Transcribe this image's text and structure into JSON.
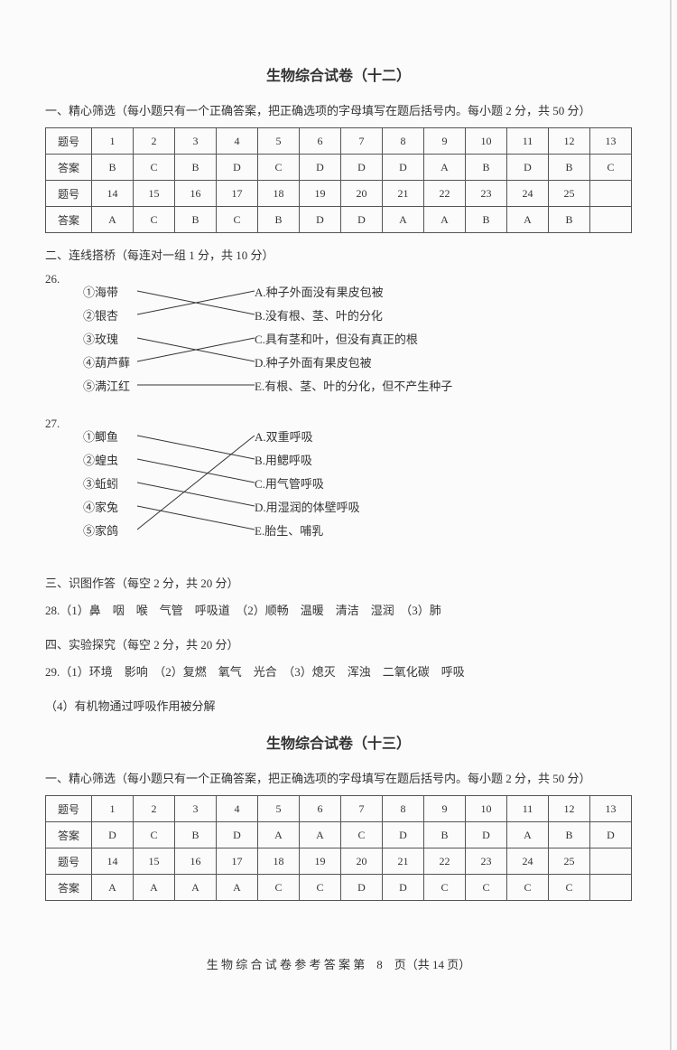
{
  "paper12": {
    "title": "生物综合试卷（十二）",
    "s1_head": "一、精心筛选（每小题只有一个正确答案，把正确选项的字母填写在题后括号内。每小题 2 分，共 50 分）",
    "row_q": "题号",
    "row_a": "答案",
    "nums1": [
      "1",
      "2",
      "3",
      "4",
      "5",
      "6",
      "7",
      "8",
      "9",
      "10",
      "11",
      "12",
      "13"
    ],
    "ans1": [
      "B",
      "C",
      "B",
      "D",
      "C",
      "D",
      "D",
      "D",
      "A",
      "B",
      "D",
      "B",
      "C"
    ],
    "nums2": [
      "14",
      "15",
      "16",
      "17",
      "18",
      "19",
      "20",
      "21",
      "22",
      "23",
      "24",
      "25",
      ""
    ],
    "ans2": [
      "A",
      "C",
      "B",
      "C",
      "B",
      "D",
      "D",
      "A",
      "A",
      "B",
      "A",
      "B",
      ""
    ],
    "s2_head": "二、连线搭桥（每连对一组 1 分，共 10 分）",
    "q26_num": "26.",
    "q26_left": [
      {
        "n": "①",
        "t": "海带"
      },
      {
        "n": "②",
        "t": "银杏"
      },
      {
        "n": "③",
        "t": "玫瑰"
      },
      {
        "n": "④",
        "t": "葫芦藓"
      },
      {
        "n": "⑤",
        "t": "满江红"
      }
    ],
    "q26_right": [
      "A.种子外面没有果皮包被",
      "B.没有根、茎、叶的分化",
      "C.具有茎和叶，但没有真正的根",
      "D.种子外面有果皮包被",
      "E.有根、茎、叶的分化，但不产生种子"
    ],
    "q26_map": [
      [
        0,
        1
      ],
      [
        1,
        0
      ],
      [
        2,
        3
      ],
      [
        3,
        2
      ],
      [
        4,
        4
      ]
    ],
    "q27_num": "27.",
    "q27_left": [
      {
        "n": "①",
        "t": "鲫鱼"
      },
      {
        "n": "②",
        "t": "蝗虫"
      },
      {
        "n": "③",
        "t": "蚯蚓"
      },
      {
        "n": "④",
        "t": "家兔"
      },
      {
        "n": "⑤",
        "t": "家鸽"
      }
    ],
    "q27_right": [
      "A.双重呼吸",
      "B.用鳃呼吸",
      "C.用气管呼吸",
      "D.用湿润的体壁呼吸",
      "E.胎生、哺乳"
    ],
    "q27_map": [
      [
        0,
        1
      ],
      [
        1,
        2
      ],
      [
        2,
        3
      ],
      [
        3,
        4
      ],
      [
        4,
        0
      ]
    ],
    "s3_head": "三、识图作答（每空 2 分，共 20 分）",
    "q28": "28.（1）鼻　咽　喉　气管　呼吸道　（2）顺畅　温暖　清洁　湿润　（3）肺",
    "s4_head": "四、实验探究（每空 2 分，共 20 分）",
    "q29a": "29.（1）环境　影响　（2）复燃　氧气　光合　（3）熄灭　浑浊　二氧化碳　呼吸",
    "q29b": "（4）有机物通过呼吸作用被分解"
  },
  "paper13": {
    "title": "生物综合试卷（十三）",
    "s1_head": "一、精心筛选（每小题只有一个正确答案，把正确选项的字母填写在题后括号内。每小题 2 分，共 50 分）",
    "row_q": "题号",
    "row_a": "答案",
    "nums1": [
      "1",
      "2",
      "3",
      "4",
      "5",
      "6",
      "7",
      "8",
      "9",
      "10",
      "11",
      "12",
      "13"
    ],
    "ans1": [
      "D",
      "C",
      "B",
      "D",
      "A",
      "A",
      "C",
      "D",
      "B",
      "D",
      "A",
      "B",
      "D"
    ],
    "nums2": [
      "14",
      "15",
      "16",
      "17",
      "18",
      "19",
      "20",
      "21",
      "22",
      "23",
      "24",
      "25",
      ""
    ],
    "ans2": [
      "A",
      "A",
      "A",
      "A",
      "C",
      "C",
      "D",
      "D",
      "C",
      "C",
      "C",
      "C",
      ""
    ]
  },
  "footer": "生 物 综 合 试 卷 参 考 答 案 第　8　页（共 14 页）"
}
